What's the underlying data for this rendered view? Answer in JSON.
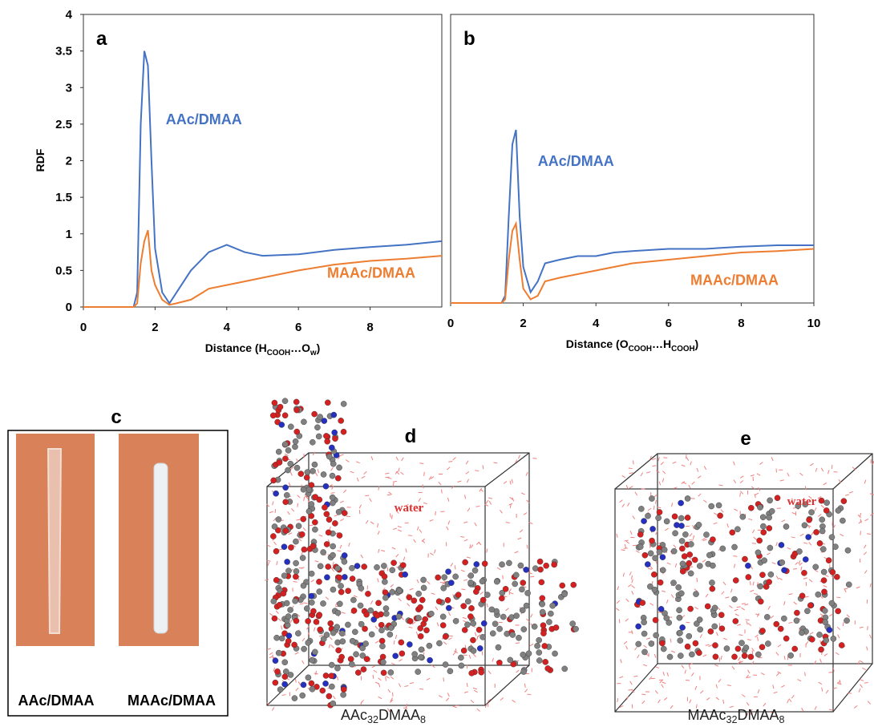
{
  "chart_data": [
    {
      "type": "line",
      "panel": "a",
      "ylabel": "RDF",
      "xlabel": [
        {
          "text": "Distance  (H"
        },
        {
          "text": "COOH",
          "sub": true
        },
        {
          "text": "…O"
        },
        {
          "text": "w",
          "sub": true
        },
        {
          "text": ")"
        }
      ],
      "xlim": [
        0,
        10
      ],
      "xticks": [
        0,
        2,
        4,
        6,
        8
      ],
      "ylim": [
        0,
        4
      ],
      "yticks": [
        0,
        0.5,
        1,
        1.5,
        2,
        2.5,
        3,
        3.5,
        4
      ],
      "x": [
        0,
        1.4,
        1.5,
        1.6,
        1.7,
        1.8,
        1.9,
        2.0,
        2.2,
        2.4,
        2.6,
        3.0,
        3.5,
        4.0,
        4.5,
        5.0,
        6,
        7,
        8,
        9,
        10
      ],
      "series": [
        {
          "name": "AAc/DMAA",
          "color": "#4472c4",
          "values": [
            0,
            0,
            0.2,
            2.5,
            3.5,
            3.3,
            2.0,
            0.8,
            0.2,
            0.05,
            0.2,
            0.5,
            0.75,
            0.85,
            0.75,
            0.7,
            0.72,
            0.78,
            0.82,
            0.85,
            0.9
          ]
        },
        {
          "name": "MAAc/DMAA",
          "color": "#ed7d31",
          "values": [
            0,
            0,
            0.05,
            0.6,
            0.9,
            1.05,
            0.5,
            0.3,
            0.1,
            0.03,
            0.05,
            0.1,
            0.25,
            0.3,
            0.35,
            0.4,
            0.5,
            0.58,
            0.63,
            0.66,
            0.7
          ]
        }
      ]
    },
    {
      "type": "line",
      "panel": "b",
      "xlabel": [
        {
          "text": "Distance  (O"
        },
        {
          "text": "COOH",
          "sub": true
        },
        {
          "text": "…H"
        },
        {
          "text": "COOH",
          "sub": true
        },
        {
          "text": ")"
        }
      ],
      "xlim": [
        0,
        10
      ],
      "xticks": [
        0,
        2,
        4,
        6,
        8,
        10
      ],
      "ylim": [
        0,
        4
      ],
      "x": [
        0,
        1.4,
        1.5,
        1.6,
        1.7,
        1.8,
        1.9,
        2.0,
        2.2,
        2.4,
        2.6,
        3.0,
        3.5,
        4.0,
        4.5,
        5.0,
        6,
        7,
        8,
        9,
        10
      ],
      "series": [
        {
          "name": "AAc/DMAA",
          "color": "#4472c4",
          "values": [
            0,
            0,
            0.1,
            1.2,
            2.2,
            2.4,
            1.2,
            0.5,
            0.15,
            0.3,
            0.55,
            0.6,
            0.65,
            0.65,
            0.7,
            0.72,
            0.75,
            0.75,
            0.78,
            0.8,
            0.8
          ]
        },
        {
          "name": "MAAc/DMAA",
          "color": "#ed7d31",
          "values": [
            0,
            0,
            0.05,
            0.6,
            1.0,
            1.1,
            0.6,
            0.2,
            0.05,
            0.1,
            0.3,
            0.35,
            0.4,
            0.45,
            0.5,
            0.55,
            0.6,
            0.65,
            0.7,
            0.72,
            0.75
          ]
        }
      ]
    }
  ],
  "panels": {
    "c": {
      "label": "c",
      "captions": [
        "AAc/DMAA",
        "MAAc/DMAA"
      ]
    },
    "d": {
      "label": "d",
      "water": "water",
      "caption": [
        {
          "text": "AAc"
        },
        {
          "text": "32",
          "sub": true
        },
        {
          "text": "DMAA"
        },
        {
          "text": "8",
          "sub": true
        }
      ]
    },
    "e": {
      "label": "e",
      "water": "water",
      "caption": [
        {
          "text": "MAAc"
        },
        {
          "text": "32",
          "sub": true
        },
        {
          "text": "DMAA"
        },
        {
          "text": "8",
          "sub": true
        }
      ]
    }
  }
}
